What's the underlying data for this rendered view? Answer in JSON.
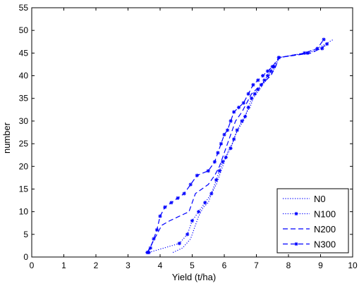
{
  "chart_data": {
    "type": "line",
    "title": "",
    "xlabel": "Yield (t/ha)",
    "ylabel": "number",
    "xlim": [
      0,
      10
    ],
    "ylim": [
      0,
      55
    ],
    "xticks": [
      "0",
      "1",
      "2",
      "3",
      "4",
      "5",
      "6",
      "7",
      "8",
      "9",
      "10"
    ],
    "yticks": [
      "0",
      "5",
      "10",
      "15",
      "20",
      "25",
      "30",
      "35",
      "40",
      "45",
      "50",
      "55"
    ],
    "grid": false,
    "legend_position": "bottom-right",
    "line_color": "#0000FF",
    "series": [
      {
        "name": "N0",
        "style": "dotted",
        "marker": "none",
        "x": [
          4.4,
          4.7,
          4.95,
          5.1,
          5.2,
          5.35,
          5.5,
          5.6,
          5.75,
          5.85,
          5.95,
          6.05,
          6.15,
          6.25,
          6.35,
          6.5,
          6.6,
          6.7,
          6.8,
          6.9,
          7.0,
          7.1,
          7.2,
          7.3,
          7.4,
          7.5,
          7.6,
          7.7,
          8.5,
          8.9,
          9.15,
          9.4
        ],
        "y": [
          1,
          2,
          4,
          7,
          9,
          11,
          12,
          14,
          16,
          18,
          20,
          22,
          24,
          25,
          27,
          29,
          30,
          32,
          33,
          35,
          36,
          37,
          38,
          39,
          40,
          41,
          42,
          44,
          45,
          46,
          47,
          48
        ]
      },
      {
        "name": "N100",
        "style": "dotted",
        "marker": "*",
        "x": [
          3.65,
          4.6,
          4.85,
          5.0,
          5.2,
          5.4,
          5.6,
          5.75,
          5.85,
          5.95,
          6.05,
          6.2,
          6.3,
          6.4,
          6.55,
          6.65,
          6.75,
          6.85,
          6.95,
          7.05,
          7.15,
          7.25,
          7.35,
          7.45,
          7.55,
          7.7,
          8.6,
          9.05,
          9.2
        ],
        "y": [
          1,
          3,
          5,
          8,
          10,
          12,
          14,
          17,
          19,
          21,
          22,
          24,
          26,
          28,
          30,
          31,
          33,
          35,
          36,
          37,
          38,
          39,
          40,
          41,
          42,
          44,
          45,
          46,
          47
        ]
      },
      {
        "name": "N200",
        "style": "dashed",
        "marker": "none",
        "x": [
          3.6,
          3.75,
          3.9,
          4.05,
          4.3,
          4.6,
          4.9,
          5.1,
          5.3,
          5.5,
          5.7,
          5.85,
          5.95,
          6.05,
          6.15,
          6.25,
          6.35,
          6.45,
          6.55,
          6.7,
          6.85,
          7.0,
          7.15,
          7.3,
          7.45,
          7.6,
          7.7,
          8.7,
          9.0,
          9.2
        ],
        "y": [
          1,
          3,
          5,
          7,
          8,
          9,
          10,
          14,
          15,
          16,
          18,
          20,
          22,
          24,
          26,
          28,
          30,
          31,
          32,
          34,
          36,
          37,
          38,
          39,
          40,
          42,
          44,
          45,
          46,
          47
        ]
      },
      {
        "name": "N300",
        "style": "dashed",
        "marker": "*",
        "x": [
          3.6,
          3.7,
          3.8,
          3.9,
          4.0,
          4.15,
          4.35,
          4.55,
          4.75,
          4.95,
          5.15,
          5.5,
          5.7,
          5.8,
          5.9,
          6.0,
          6.1,
          6.2,
          6.3,
          6.45,
          6.6,
          6.75,
          6.9,
          7.05,
          7.2,
          7.35,
          7.5,
          7.7,
          8.5,
          8.9,
          9.1
        ],
        "y": [
          1,
          2,
          4,
          6,
          9,
          11,
          12,
          13,
          14,
          16,
          18,
          19,
          21,
          23,
          25,
          27,
          28,
          30,
          32,
          33,
          34,
          36,
          38,
          39,
          40,
          41,
          42,
          44,
          45,
          46,
          48
        ]
      }
    ]
  }
}
